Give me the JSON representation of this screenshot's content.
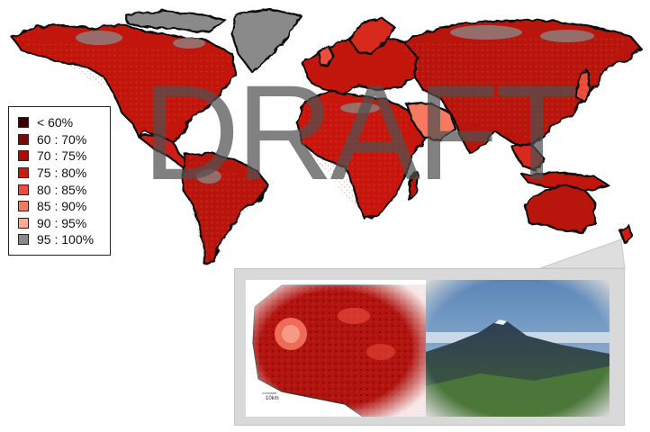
{
  "legend": {
    "items": [
      {
        "label": "< 60%",
        "color": "#3d0000"
      },
      {
        "label": "60 : 70%",
        "color": "#7a0a0a"
      },
      {
        "label": "70 : 75%",
        "color": "#a60d0d"
      },
      {
        "label": "75 : 80%",
        "color": "#cf1a14"
      },
      {
        "label": "80 : 85%",
        "color": "#ec4d3c"
      },
      {
        "label": "85 : 90%",
        "color": "#f57a61"
      },
      {
        "label": "90 : 95%",
        "color": "#f8ab95"
      },
      {
        "label": "95 : 100%",
        "color": "#8a8a8a"
      }
    ]
  },
  "watermark": "DRAFT",
  "inset": {
    "scale_label": "10km"
  }
}
